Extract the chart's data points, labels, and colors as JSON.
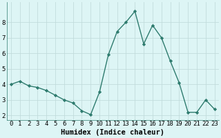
{
  "x": [
    0,
    1,
    2,
    3,
    4,
    5,
    6,
    7,
    8,
    9,
    10,
    11,
    12,
    13,
    14,
    15,
    16,
    17,
    18,
    19,
    20,
    21,
    22,
    23
  ],
  "y": [
    4.0,
    4.2,
    3.9,
    3.8,
    3.6,
    3.3,
    3.0,
    2.8,
    2.3,
    2.05,
    3.5,
    5.9,
    7.4,
    8.0,
    8.7,
    6.6,
    7.8,
    7.0,
    5.5,
    4.1,
    2.2,
    2.2,
    3.0,
    2.4
  ],
  "line_color": "#2e7b6e",
  "marker": "D",
  "marker_size": 2.2,
  "bg_color": "#ddf5f5",
  "grid_color": "#c2dcdc",
  "xlabel": "Humidex (Indice chaleur)",
  "ylim": [
    1.7,
    9.3
  ],
  "xlim": [
    -0.5,
    23.5
  ],
  "yticks": [
    2,
    3,
    4,
    5,
    6,
    7,
    8
  ],
  "xticks": [
    0,
    1,
    2,
    3,
    4,
    5,
    6,
    7,
    8,
    9,
    10,
    11,
    12,
    13,
    14,
    15,
    16,
    17,
    18,
    19,
    20,
    21,
    22,
    23
  ],
  "xlabel_fontsize": 7.5,
  "tick_fontsize": 6.5,
  "line_width": 1.0
}
